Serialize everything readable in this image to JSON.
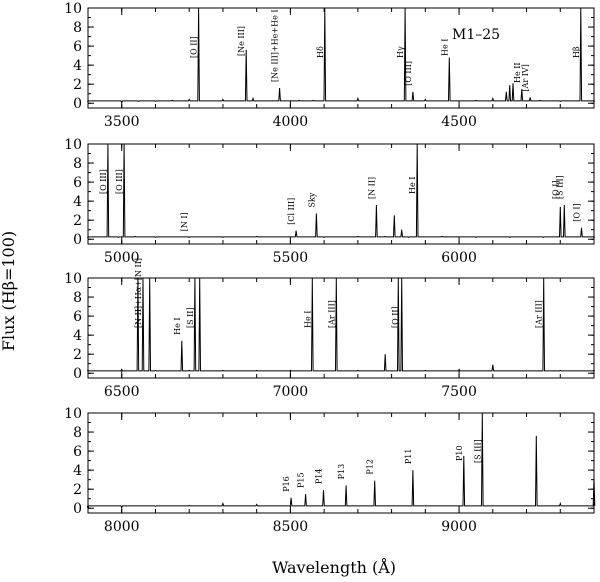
{
  "figure": {
    "ylabel": "Flux (Hβ=100)",
    "xlabel": "Wavelength (Å)",
    "object_label": "M1–25"
  },
  "chart_data": [
    {
      "type": "line",
      "panel": 1,
      "xlim": [
        3400,
        4900
      ],
      "ylim": [
        -0.5,
        10
      ],
      "xticks": [
        3500,
        4000,
        4500
      ],
      "yticks": [
        0,
        2,
        4,
        6,
        8,
        10
      ],
      "series": [
        {
          "x": [
            3400,
            3500,
            3550,
            3600,
            3650,
            3700,
            3728,
            3800,
            3869,
            3889,
            3968,
            4026,
            4068,
            4102,
            4200,
            4340,
            4363,
            4400,
            4471,
            4550,
            4600,
            4640,
            4650,
            4660,
            4686,
            4711,
            4740,
            4800,
            4861,
            4900
          ],
          "y": [
            0.2,
            0.1,
            0.2,
            0.2,
            0.3,
            0.4,
            10,
            0.4,
            5.6,
            0.5,
            1.6,
            0.3,
            0.3,
            10,
            0.5,
            10,
            1.2,
            0.4,
            4.8,
            0.3,
            0.5,
            1.2,
            1.9,
            2.1,
            1.5,
            0.6,
            0.3,
            0.2,
            10,
            0.2
          ]
        }
      ],
      "lines": [
        {
          "x": 3728,
          "label": "[O II]"
        },
        {
          "x": 3869,
          "label": "[Ne III]"
        },
        {
          "x": 3968,
          "label": "[Ne III]+He+He I"
        },
        {
          "x": 4102,
          "label": "Hδ"
        },
        {
          "x": 4340,
          "label": "Hγ"
        },
        {
          "x": 4363,
          "label": "[O III]"
        },
        {
          "x": 4471,
          "label": "He I"
        },
        {
          "x": 4686,
          "label": "He II"
        },
        {
          "x": 4711,
          "label": "[Ar IV]"
        },
        {
          "x": 4861,
          "label": "Hβ"
        }
      ]
    },
    {
      "type": "line",
      "panel": 2,
      "xlim": [
        4900,
        6400
      ],
      "ylim": [
        -0.5,
        10
      ],
      "xticks": [
        5000,
        5500,
        6000
      ],
      "yticks": [
        0,
        2,
        4,
        6,
        8,
        10
      ],
      "series": [
        {
          "x": [
            4900,
            4959,
            4990,
            5007,
            5040,
            5100,
            5200,
            5300,
            5400,
            5517,
            5577,
            5600,
            5700,
            5755,
            5780,
            5808,
            5830,
            5850,
            5876,
            5950,
            6050,
            6150,
            6250,
            6300,
            6312,
            6363,
            6400
          ],
          "y": [
            0.2,
            10,
            0.2,
            10,
            0.3,
            0.2,
            0.2,
            0.2,
            0.3,
            0.9,
            2.7,
            0.2,
            0.3,
            3.6,
            0.3,
            2.5,
            1.0,
            0.2,
            10,
            0.3,
            0.2,
            0.2,
            0.2,
            3.4,
            3.6,
            1.2,
            0.2
          ]
        }
      ],
      "lines": [
        {
          "x": 4959,
          "label": "[O III]"
        },
        {
          "x": 5007,
          "label": "[O III]"
        },
        {
          "x": 5200,
          "label": "[N I]"
        },
        {
          "x": 5517,
          "label": "[Cl III]"
        },
        {
          "x": 5577,
          "label": "Sky"
        },
        {
          "x": 5755,
          "label": "[N II]"
        },
        {
          "x": 5876,
          "label": "He I"
        },
        {
          "x": 6300,
          "label": "[O I]"
        },
        {
          "x": 6312,
          "label": "[S III]"
        },
        {
          "x": 6363,
          "label": "[O I]"
        }
      ]
    },
    {
      "type": "line",
      "panel": 3,
      "xlim": [
        6400,
        7900
      ],
      "ylim": [
        -0.5,
        10
      ],
      "xticks": [
        6500,
        7000,
        7500
      ],
      "yticks": [
        0,
        2,
        4,
        6,
        8,
        10
      ],
      "series": [
        {
          "x": [
            6400,
            6500,
            6548,
            6563,
            6583,
            6600,
            6678,
            6700,
            6717,
            6731,
            6800,
            6900,
            7000,
            7065,
            7136,
            7200,
            7281,
            7320,
            7330,
            7400,
            7500,
            7600,
            7751,
            7800,
            7900
          ],
          "y": [
            0.3,
            0.4,
            10,
            10,
            10,
            0.3,
            3.4,
            0.3,
            10,
            10,
            0.3,
            0.3,
            0.3,
            10,
            10,
            0.3,
            2.0,
            10,
            10,
            0.3,
            0.4,
            0.9,
            10,
            0.3,
            0.3
          ]
        }
      ],
      "lines": [
        {
          "x": 6563,
          "label": "[N II]+Hα+[N II]"
        },
        {
          "x": 6678,
          "label": "He I"
        },
        {
          "x": 6717,
          "label": "[S II]"
        },
        {
          "x": 7065,
          "label": "He I"
        },
        {
          "x": 7136,
          "label": "[Ar III]"
        },
        {
          "x": 7325,
          "label": "[O II]"
        },
        {
          "x": 7751,
          "label": "[Ar III]"
        }
      ]
    },
    {
      "type": "line",
      "panel": 4,
      "xlim": [
        7900,
        9400
      ],
      "ylim": [
        -0.5,
        10
      ],
      "xticks": [
        8000,
        8500,
        9000
      ],
      "yticks": [
        0,
        2,
        4,
        6,
        8,
        10
      ],
      "series": [
        {
          "x": [
            7900,
            8000,
            8100,
            8200,
            8300,
            8400,
            8502,
            8545,
            8598,
            8665,
            8750,
            8863,
            9014,
            9069,
            9229,
            9300,
            9400
          ],
          "y": [
            0.0,
            0.1,
            0.2,
            0.3,
            0.5,
            0.4,
            1.1,
            1.5,
            1.9,
            2.4,
            2.9,
            4.0,
            5.5,
            10,
            7.6,
            0.5,
            3.2
          ]
        }
      ],
      "lines": [
        {
          "x": 8502,
          "label": "P16"
        },
        {
          "x": 8545,
          "label": "P15"
        },
        {
          "x": 8598,
          "label": "P14"
        },
        {
          "x": 8665,
          "label": "P13"
        },
        {
          "x": 8750,
          "label": "P12"
        },
        {
          "x": 8863,
          "label": "P11"
        },
        {
          "x": 9014,
          "label": "P10"
        },
        {
          "x": 9069,
          "label": "[S III]"
        }
      ]
    }
  ]
}
